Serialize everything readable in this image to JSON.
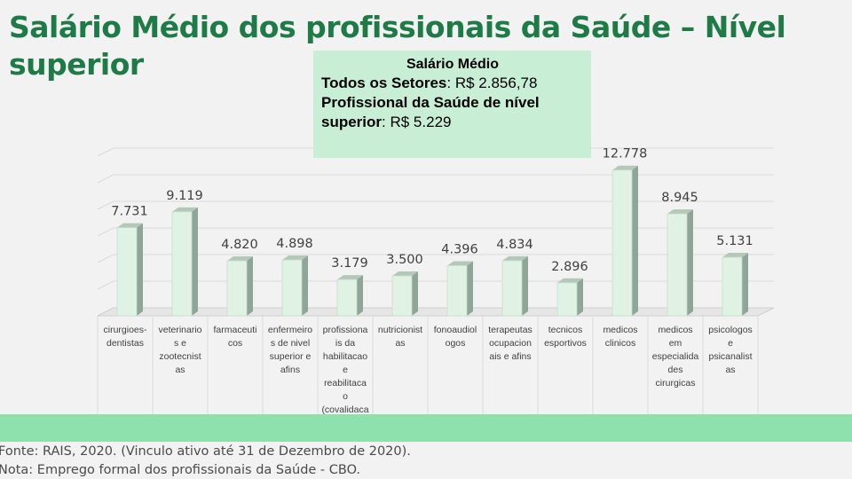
{
  "slide": {
    "title": "Salário Médio dos profissionais da Saúde – Nível superior",
    "info_box": {
      "heading": "Salário Médio",
      "line1_label": "Todos os Setores",
      "line1_value": ": R$ 2.856,78",
      "line2_label": "Profissional da Saúde de nível superior",
      "line2_value": ": R$ 5.229"
    },
    "source_note": "Fonte: RAIS, 2020. (Vinculo ativo até 31 de Dezembro de 2020).",
    "footnote": "Nota: Emprego formal dos profissionais da Saúde - CBO."
  },
  "colors": {
    "title": "#1e7a46",
    "bar_front": "#dff2e4",
    "bar_side": "#8fa597",
    "info_box": "#c8eed6",
    "green_band": "#8ee0ad"
  },
  "chart_data": {
    "type": "bar",
    "style": "3d-column",
    "grid": true,
    "ylim": [
      0,
      14000
    ],
    "categories": [
      "cirurgioes-dentistas",
      "veterinarios e zootecnistas",
      "farmaceuticos",
      "enfermeiros de nivel superior e afins",
      "profissionais da habilitacao e reabilitacao (covalidaca",
      "nutricionistas",
      "fonoaudiologos",
      "terapeutas ocupacionais e afins",
      "tecnicos esportivos",
      "medicos clinicos",
      "medicos em especialidades cirurgicas",
      "psicologos e psicanalistas"
    ],
    "category_display_lines": [
      [
        "cirurgioes-",
        "dentistas"
      ],
      [
        "veterinario",
        "s e",
        "zootecnist",
        "as"
      ],
      [
        "farmaceuti",
        "cos"
      ],
      [
        "enfermeiro",
        "s de nivel",
        "superior e",
        "afins"
      ],
      [
        "profissiona",
        "is da",
        "habilitacao",
        "e",
        "reabilitaca",
        "o",
        "(covalidaca"
      ],
      [
        "nutricionist",
        "as"
      ],
      [
        "fonoaudiol",
        "ogos"
      ],
      [
        "terapeutas",
        "ocupacion",
        "ais e afins"
      ],
      [
        "tecnicos",
        "esportivos"
      ],
      [
        "medicos",
        "clinicos"
      ],
      [
        "medicos",
        "em",
        "especialida",
        "des",
        "cirurgicas"
      ],
      [
        "psicologos",
        "e",
        "psicanalist",
        "as"
      ]
    ],
    "values": [
      7731,
      9119,
      4820,
      4898,
      3179,
      3500,
      4396,
      4834,
      2896,
      12778,
      8945,
      5131
    ],
    "value_labels": [
      "7.731",
      "9.119",
      "4.820",
      "4.898",
      "3.179",
      "3.500",
      "4.396",
      "4.834",
      "2.896",
      "12.778",
      "8.945",
      "5.131"
    ]
  }
}
